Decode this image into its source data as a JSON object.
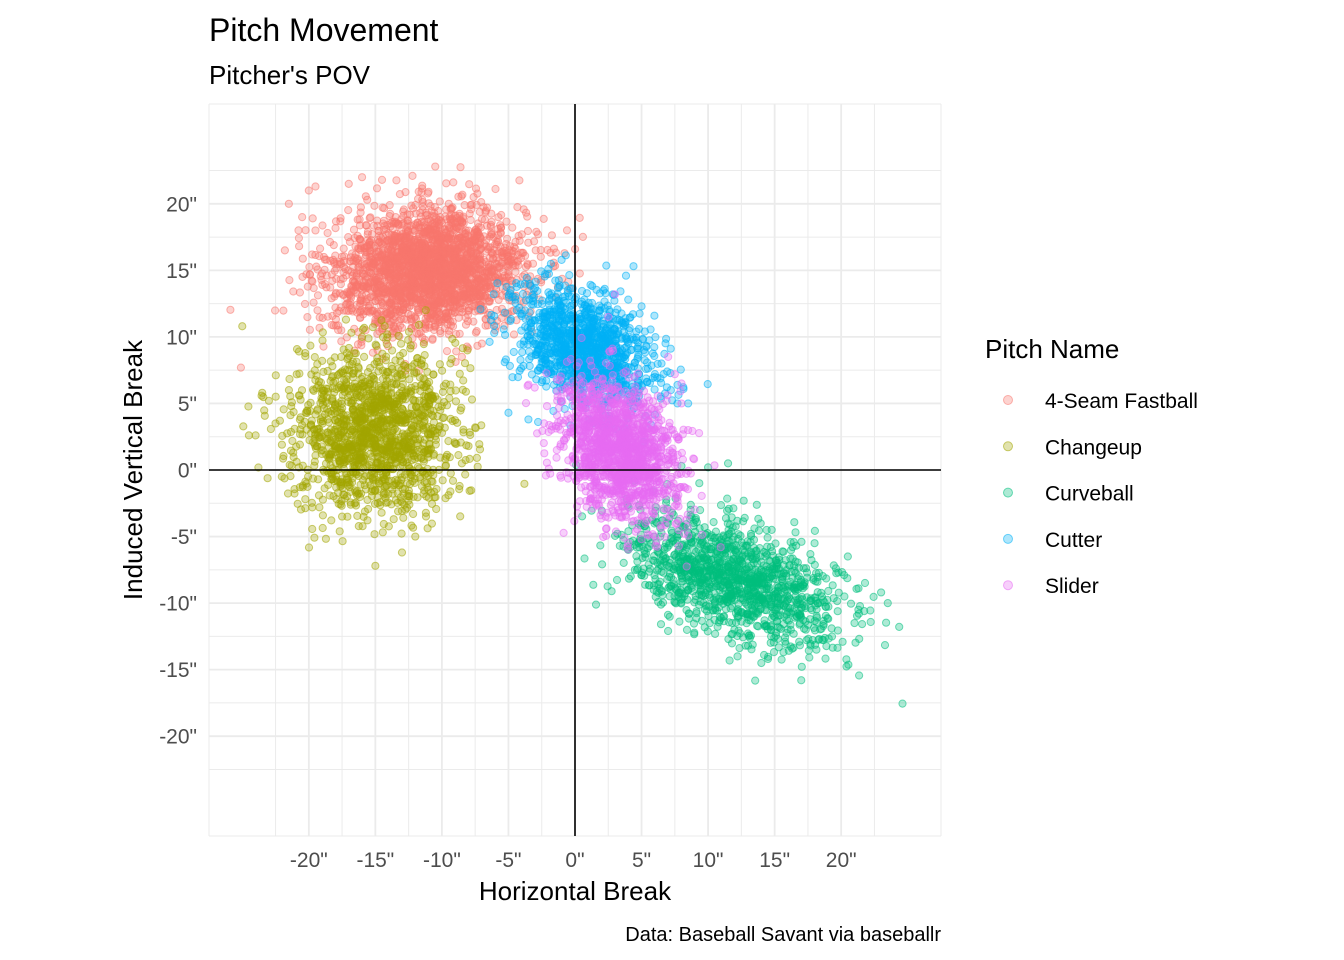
{
  "chart_data": {
    "type": "scatter",
    "title": "Pitch Movement",
    "subtitle": "Pitcher's POV",
    "xlabel": "Horizontal Break",
    "ylabel": "Induced Vertical Break",
    "caption": "Data: Baseball Savant via baseballr",
    "x_unit": "\"",
    "y_unit": "\"",
    "xlim": [
      -27.5,
      27.5
    ],
    "ylim": [
      -27.5,
      27.5
    ],
    "x_ticks": [
      -20,
      -15,
      -10,
      -5,
      0,
      5,
      10,
      15,
      20
    ],
    "y_ticks": [
      -20,
      -15,
      -10,
      -5,
      0,
      5,
      10,
      15,
      20
    ],
    "grid": true,
    "zero_lines": true,
    "legend": {
      "title": "Pitch Name",
      "position": "right"
    },
    "series": [
      {
        "name": "4-Seam Fastball",
        "color": "#F8766D",
        "center": [
          -11,
          15
        ],
        "spread": [
          3.6,
          2.3
        ],
        "rho": 0.1,
        "count": 2400,
        "outliers": [
          [
            -20,
            21
          ],
          [
            -19.5,
            21.3
          ],
          [
            -21.5,
            20
          ],
          [
            -17,
            21.5
          ],
          [
            -16,
            22
          ],
          [
            -10.5,
            22.8
          ],
          [
            -14.5,
            21.8
          ],
          [
            -20.5,
            19
          ],
          [
            -19.5,
            18
          ],
          [
            -4,
            12
          ],
          [
            -5,
            11.2
          ],
          [
            -6,
            10.5
          ],
          [
            -7,
            9.5
          ],
          [
            -8.5,
            8.5
          ],
          [
            -3.5,
            14
          ],
          [
            -21.8,
            16.5
          ],
          [
            -18,
            12.2
          ],
          [
            -15,
            11.3
          ]
        ]
      },
      {
        "name": "Changeup",
        "color": "#A3A500",
        "center": [
          -15,
          3
        ],
        "spread": [
          3.0,
          3.0
        ],
        "rho": 0.0,
        "count": 1500,
        "outliers": [
          [
            -25,
            10.8
          ],
          [
            -23.5,
            5.8
          ],
          [
            -23,
            5.2
          ],
          [
            -24.5,
            2.6
          ],
          [
            -24,
            2.6
          ],
          [
            -22.5,
            3.5
          ],
          [
            -15,
            -7.2
          ],
          [
            -13,
            -6.2
          ],
          [
            -12,
            -5
          ],
          [
            -8,
            1.8
          ],
          [
            -8.5,
            0.5
          ],
          [
            -19,
            8.2
          ],
          [
            -16,
            10
          ],
          [
            -17.5,
            -3.5
          ],
          [
            -7.5,
            3.2
          ]
        ]
      },
      {
        "name": "Curveball",
        "color": "#00BF7D",
        "center": [
          12,
          -8.3
        ],
        "spread": [
          4.0,
          2.4
        ],
        "rho": -0.5,
        "count": 1300,
        "outliers": [
          [
            17,
            -15.8
          ],
          [
            14,
            -14.5
          ],
          [
            14.5,
            -14.2
          ],
          [
            23.5,
            -10
          ],
          [
            23,
            -9.2
          ],
          [
            21,
            -11.5
          ],
          [
            4,
            -6
          ],
          [
            4.5,
            -7.5
          ],
          [
            5,
            -4
          ],
          [
            8,
            0.3
          ],
          [
            11.5,
            0.5
          ],
          [
            10,
            0.2
          ],
          [
            20.5,
            -6.5
          ],
          [
            18,
            -5.5
          ],
          [
            13,
            -13.2
          ]
        ]
      },
      {
        "name": "Cutter",
        "color": "#00B0F6",
        "center": [
          0.5,
          9.2
        ],
        "spread": [
          2.6,
          2.2
        ],
        "rho": -0.35,
        "count": 1200,
        "outliers": [
          [
            -2,
            15.1
          ],
          [
            -5,
            4.3
          ],
          [
            -3.5,
            3.8
          ],
          [
            4,
            12.8
          ],
          [
            6,
            7
          ],
          [
            5,
            12.3
          ],
          [
            -4.5,
            13
          ],
          [
            6.5,
            8
          ],
          [
            7.2,
            6
          ],
          [
            7.7,
            5
          ],
          [
            8.5,
            5
          ]
        ]
      },
      {
        "name": "Slider",
        "color": "#E76BF3",
        "center": [
          3.3,
          1.5
        ],
        "spread": [
          2.3,
          2.6
        ],
        "rho": -0.35,
        "count": 1400,
        "outliers": [
          [
            3,
            13.2
          ],
          [
            7.5,
            7.2
          ],
          [
            8,
            5
          ],
          [
            8.5,
            3
          ],
          [
            4,
            -5.5
          ],
          [
            5,
            -5.2
          ],
          [
            0,
            4
          ],
          [
            -1,
            6
          ],
          [
            7,
            8.5
          ],
          [
            8,
            6.5
          ],
          [
            2.5,
            11.5
          ]
        ]
      }
    ]
  }
}
